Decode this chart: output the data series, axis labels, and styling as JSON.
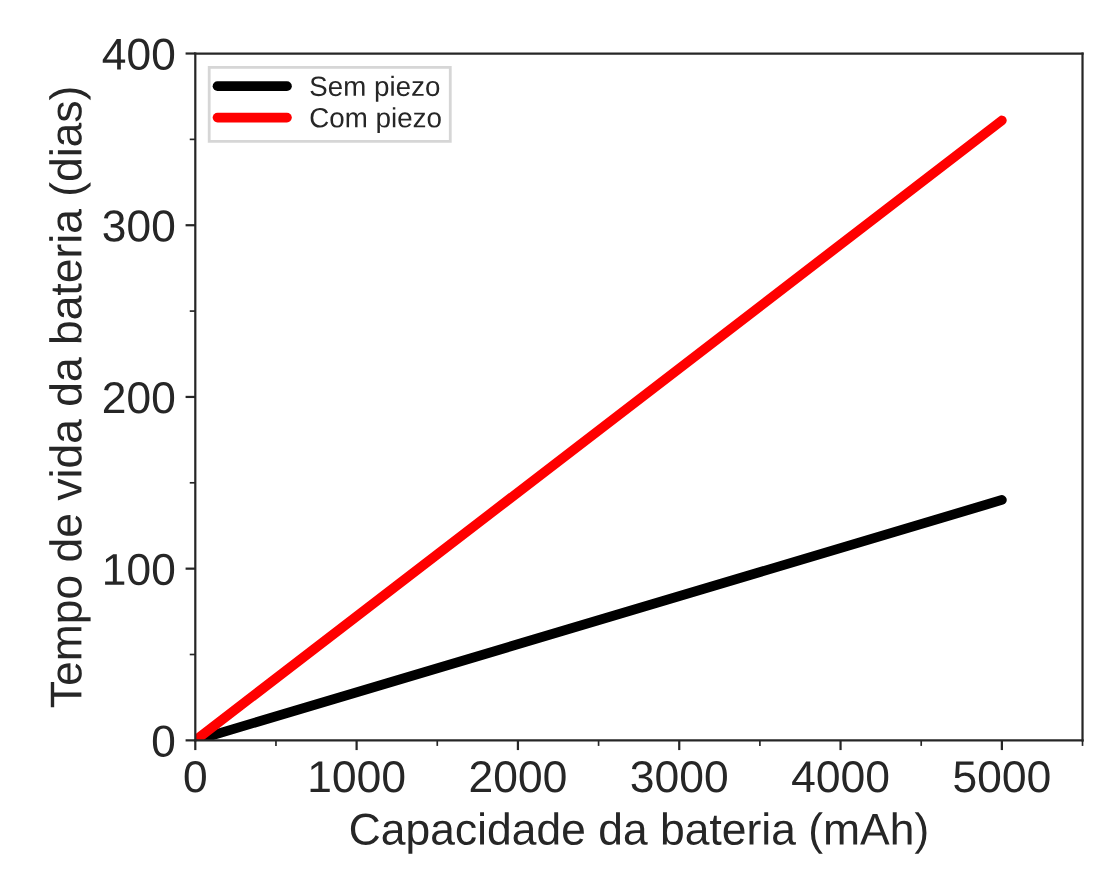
{
  "chart_data": {
    "type": "line",
    "xlabel": "Capacidade da bateria (mAh)",
    "ylabel": "Tempo de vida da bateria (dias)",
    "x": [
      0,
      5000
    ],
    "series": [
      {
        "name": "Sem piezo",
        "color": "#000000",
        "values": [
          0,
          140
        ]
      },
      {
        "name": "Com piezo",
        "color": "#ff0000",
        "values": [
          0,
          361
        ]
      }
    ],
    "xlim": [
      0,
      5500
    ],
    "ylim": [
      0,
      400
    ],
    "xticks": [
      0,
      1000,
      2000,
      3000,
      4000,
      5000
    ],
    "yticks": [
      0,
      100,
      200,
      300,
      400
    ],
    "grid": false,
    "legend": "top left",
    "marker": "none",
    "line_style": "solid"
  }
}
